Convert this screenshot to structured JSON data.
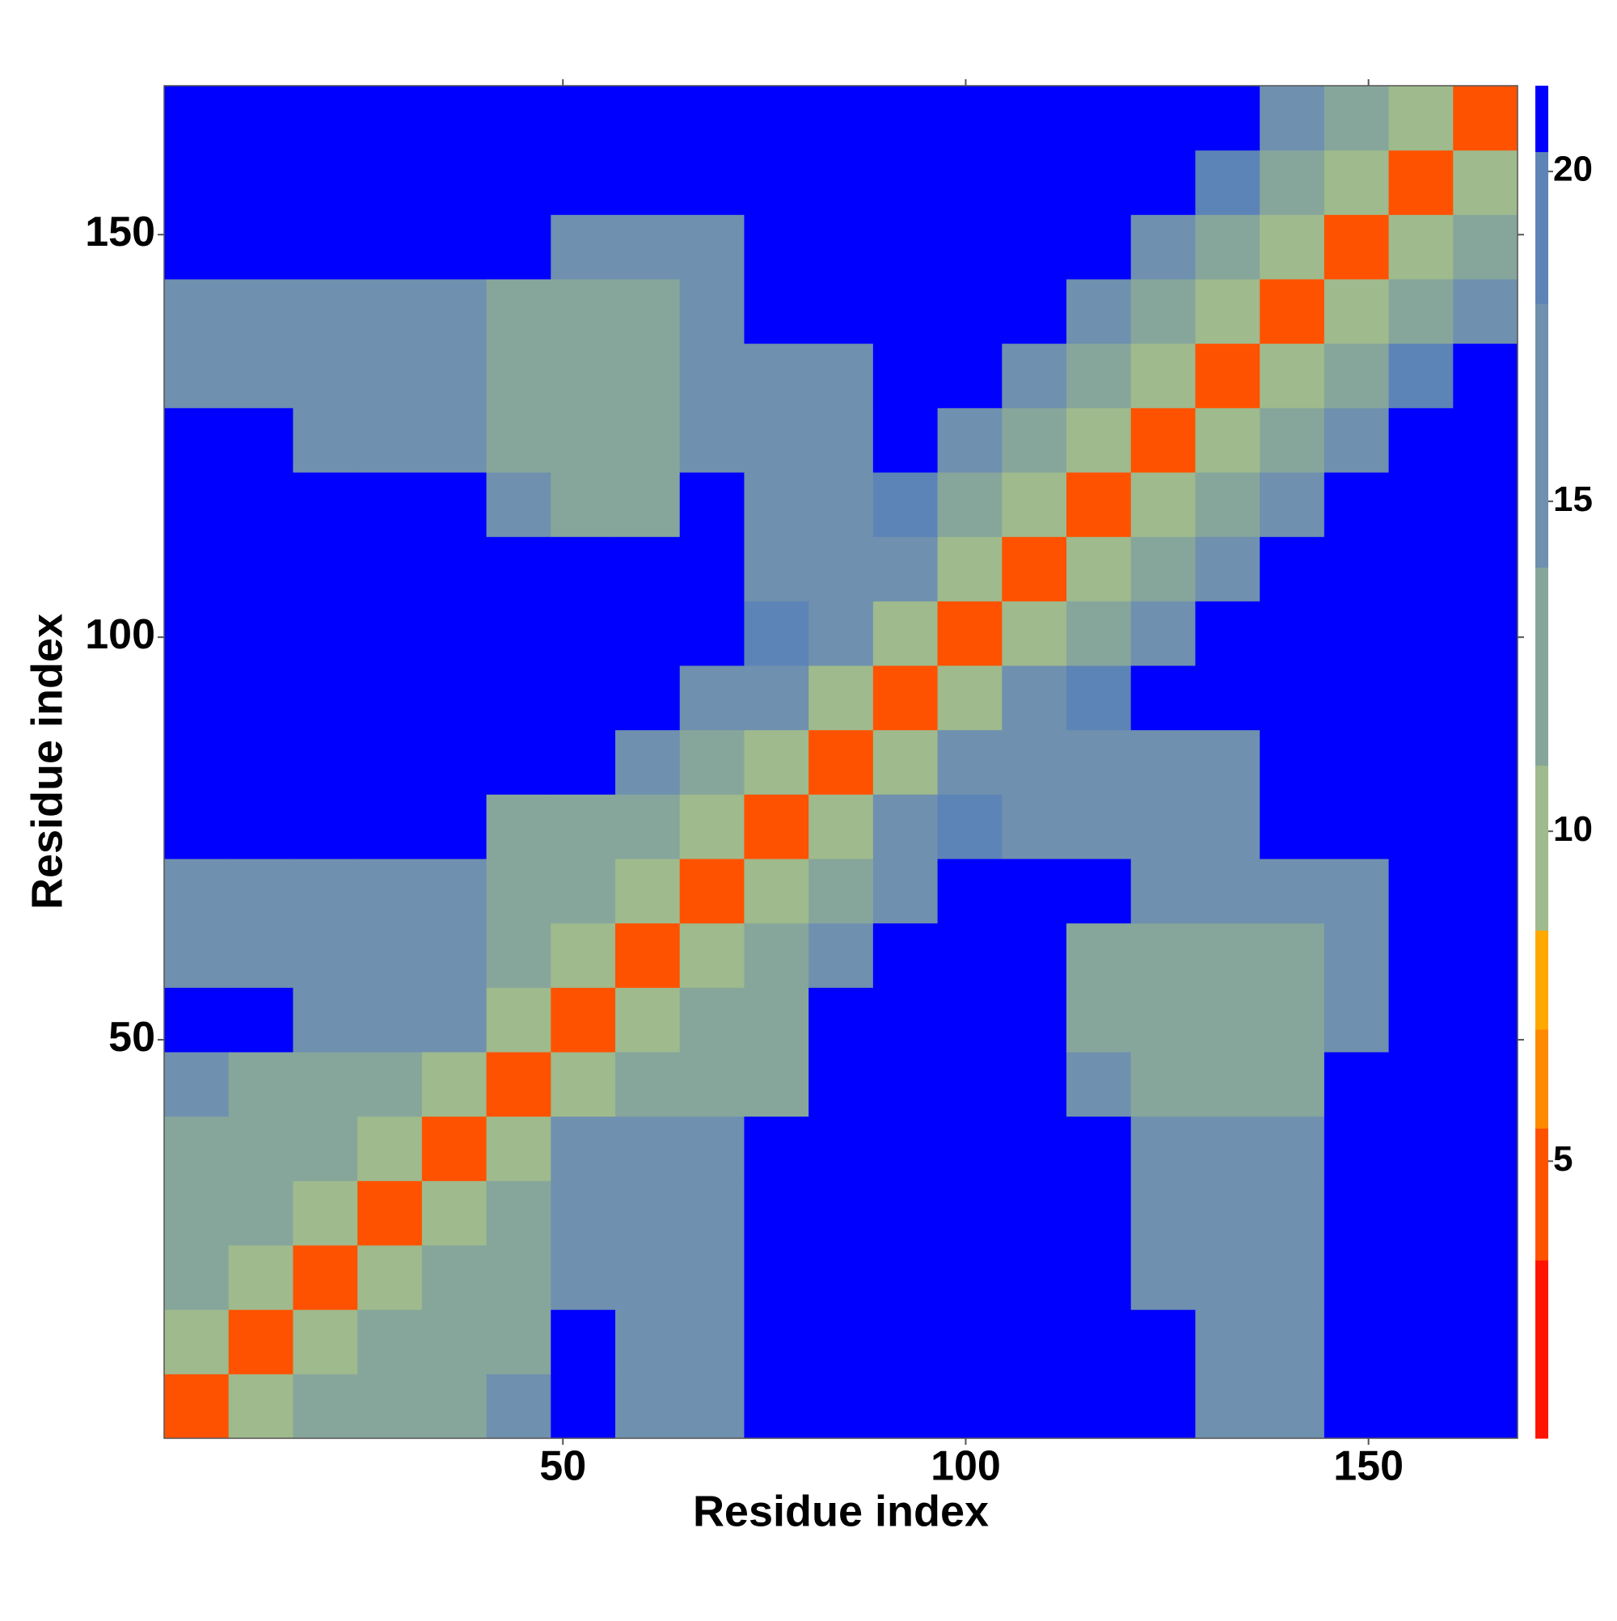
{
  "chart_data": {
    "type": "heatmap",
    "x_label": "Residue index",
    "y_label": "Residue index",
    "xlim": [
      0.5,
      168.5
    ],
    "ylim": [
      0.5,
      168.5
    ],
    "xticks": [
      50,
      100,
      150
    ],
    "yticks": [
      50,
      100,
      150
    ],
    "x_edges": [
      0.5,
      8.5,
      16.5,
      24.5,
      32.5,
      40.5,
      48.5,
      56.5,
      64.5,
      72.5,
      80.5,
      88.5,
      96.5,
      104.5,
      112.5,
      120.5,
      128.5,
      136.5,
      144.5,
      152.5,
      160.5,
      168.5
    ],
    "y_edges": [
      0.5,
      8.5,
      16.5,
      24.5,
      32.5,
      40.5,
      48.5,
      56.5,
      64.5,
      72.5,
      80.5,
      88.5,
      96.5,
      104.5,
      112.5,
      120.5,
      128.5,
      136.5,
      144.5,
      152.5,
      160.5,
      168.5
    ],
    "z": [
      [
        4,
        9,
        13,
        13,
        14,
        15,
        21,
        17,
        17,
        21,
        21,
        21,
        21,
        21,
        21,
        21,
        18,
        18,
        21,
        21,
        21
      ],
      [
        9,
        4,
        9,
        13,
        13,
        14,
        21,
        17,
        17,
        21,
        21,
        21,
        21,
        21,
        21,
        21,
        18,
        18,
        21,
        21,
        21
      ],
      [
        13,
        9,
        4,
        9,
        13,
        13,
        16,
        17,
        17,
        21,
        21,
        21,
        21,
        21,
        21,
        17,
        17,
        17,
        21,
        21,
        21
      ],
      [
        13,
        13,
        9,
        4,
        9,
        13,
        16,
        17,
        17,
        21,
        21,
        21,
        21,
        21,
        21,
        17,
        16,
        17,
        21,
        21,
        21
      ],
      [
        14,
        13,
        13,
        9,
        4,
        9,
        15,
        17,
        17,
        21,
        21,
        21,
        21,
        21,
        21,
        17,
        17,
        17,
        21,
        21,
        21
      ],
      [
        15,
        14,
        13,
        13,
        9,
        4,
        9,
        12,
        12,
        14,
        21,
        21,
        21,
        21,
        15,
        13,
        13,
        13,
        21,
        21,
        21
      ],
      [
        21,
        21,
        16,
        16,
        15,
        9,
        4,
        9,
        12,
        12,
        21,
        21,
        21,
        21,
        14,
        13,
        12,
        12,
        17,
        21,
        21
      ],
      [
        17,
        17,
        17,
        17,
        17,
        12,
        9,
        4,
        9,
        12,
        16,
        21,
        21,
        21,
        13,
        13,
        14,
        14,
        17,
        21,
        21
      ],
      [
        17,
        17,
        17,
        17,
        17,
        12,
        12,
        9,
        4,
        9,
        14,
        18,
        21,
        21,
        21,
        15,
        15,
        15,
        16,
        21,
        21
      ],
      [
        21,
        21,
        21,
        21,
        21,
        14,
        12,
        12,
        9,
        4,
        9,
        15,
        19,
        15,
        15,
        15,
        16,
        21,
        21,
        21,
        21
      ],
      [
        21,
        21,
        21,
        21,
        21,
        21,
        21,
        16,
        14,
        9,
        4,
        9,
        15,
        18,
        15,
        16,
        17,
        21,
        21,
        21,
        21
      ],
      [
        21,
        21,
        21,
        21,
        21,
        21,
        21,
        21,
        18,
        15,
        9,
        4,
        9,
        15,
        19,
        21,
        21,
        21,
        21,
        21,
        21
      ],
      [
        21,
        21,
        21,
        21,
        21,
        21,
        21,
        21,
        21,
        19,
        15,
        9,
        4,
        9,
        14,
        18,
        21,
        21,
        21,
        21,
        21
      ],
      [
        21,
        21,
        21,
        21,
        21,
        21,
        21,
        21,
        21,
        15,
        18,
        15,
        9,
        4,
        9,
        14,
        17,
        21,
        21,
        21,
        21
      ],
      [
        21,
        21,
        21,
        21,
        21,
        15,
        14,
        13,
        21,
        15,
        15,
        19,
        14,
        9,
        4,
        9,
        14,
        17,
        21,
        21,
        21
      ],
      [
        21,
        21,
        17,
        17,
        17,
        13,
        13,
        13,
        15,
        15,
        16,
        21,
        18,
        14,
        9,
        4,
        9,
        14,
        18,
        21,
        21
      ],
      [
        18,
        18,
        17,
        16,
        17,
        13,
        12,
        14,
        15,
        16,
        17,
        21,
        21,
        17,
        14,
        9,
        4,
        9,
        14,
        19,
        21
      ],
      [
        18,
        18,
        17,
        17,
        17,
        13,
        12,
        14,
        15,
        21,
        21,
        21,
        21,
        21,
        17,
        14,
        9,
        4,
        9,
        14,
        16
      ],
      [
        21,
        21,
        21,
        21,
        21,
        21,
        17,
        17,
        16,
        21,
        21,
        21,
        21,
        21,
        21,
        18,
        14,
        9,
        4,
        9,
        13
      ],
      [
        21,
        21,
        21,
        21,
        21,
        21,
        21,
        21,
        21,
        21,
        21,
        21,
        21,
        21,
        21,
        21,
        19,
        14,
        9,
        4,
        9
      ],
      [
        21,
        21,
        21,
        21,
        21,
        21,
        21,
        21,
        21,
        21,
        21,
        21,
        21,
        21,
        21,
        21,
        21,
        16,
        13,
        9,
        4
      ]
    ],
    "clim": [
      0.8,
      21.3
    ],
    "cticks": [
      5,
      10,
      15,
      20
    ],
    "color_bounds": [
      0.8,
      3.5,
      5.5,
      7,
      8.5,
      11,
      14,
      18,
      20.3,
      21.3
    ],
    "colors": [
      "#ff1400",
      "#ff5200",
      "#ff8a00",
      "#ffa800",
      "#9fba8c",
      "#86a69c",
      "#6f90ae",
      "#5d84b6",
      "#0000ff"
    ]
  }
}
